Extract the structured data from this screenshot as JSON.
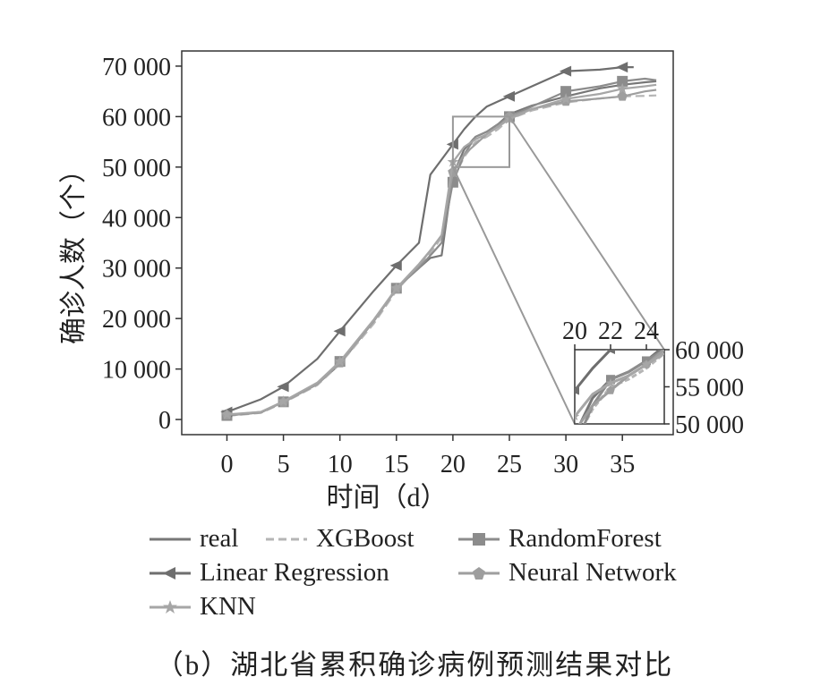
{
  "chart_data": {
    "type": "line",
    "xlabel": "时间（d）",
    "ylabel": "确诊人数（个）",
    "xlim": [
      -4,
      39.5
    ],
    "ylim": [
      -3000,
      73000
    ],
    "xticks": [
      "0",
      "5",
      "10",
      "15",
      "20",
      "25",
      "30",
      "35"
    ],
    "yticks": [
      "0",
      "10 000",
      "20 000",
      "30 000",
      "40 000",
      "50 000",
      "60 000",
      "70 000"
    ],
    "grid": false,
    "legend": "bottom",
    "caption": "（b）湖北省累积确诊病例预测结果对比",
    "series": [
      {
        "name": "real",
        "color": "#777777",
        "marker": "none",
        "x": [
          0,
          3,
          5,
          8,
          10,
          13,
          15,
          17,
          18,
          19,
          20,
          21,
          22,
          23,
          24,
          25,
          27,
          30,
          33,
          35,
          37,
          38
        ],
        "y": [
          800,
          1400,
          3500,
          7000,
          11000,
          19500,
          26000,
          30000,
          32000,
          32500,
          48500,
          53500,
          56000,
          57000,
          58500,
          60500,
          62200,
          64000,
          65600,
          66300,
          66800,
          67000
        ]
      },
      {
        "name": "XGBoost",
        "color": "#b5b5b5",
        "marker": "none",
        "dash": true,
        "x": [
          0,
          3,
          5,
          8,
          10,
          13,
          15,
          17,
          18,
          19,
          20,
          21,
          22,
          23,
          24,
          25,
          27,
          30,
          33,
          35,
          37,
          38
        ],
        "y": [
          700,
          1300,
          3300,
          6800,
          11000,
          19000,
          25500,
          30500,
          33000,
          36000,
          47500,
          52000,
          55000,
          56000,
          57500,
          59500,
          61200,
          62800,
          63600,
          64000,
          64100,
          64200
        ]
      },
      {
        "name": "RandomForest",
        "color": "#8c8c8c",
        "marker": "square",
        "x": [
          0,
          3,
          5,
          8,
          10,
          13,
          15,
          17,
          18,
          19,
          20,
          21,
          22,
          23,
          24,
          25,
          27,
          30,
          33,
          35,
          37,
          38
        ],
        "y": [
          800,
          1400,
          3500,
          7200,
          11500,
          19500,
          26000,
          30000,
          32500,
          35000,
          47000,
          52500,
          56000,
          57000,
          58500,
          60000,
          62000,
          65000,
          66000,
          67000,
          67500,
          67200
        ]
      },
      {
        "name": "Linear Regression",
        "color": "#6e6e6e",
        "marker": "triangle-left",
        "x": [
          0,
          3,
          5,
          8,
          10,
          13,
          15,
          17,
          18,
          19,
          20,
          21,
          22,
          23,
          24,
          25,
          27,
          30,
          33,
          35,
          36
        ],
        "y": [
          1500,
          4000,
          6500,
          12000,
          17500,
          25500,
          30500,
          35000,
          48500,
          51500,
          54500,
          57500,
          60000,
          62000,
          63000,
          64000,
          66000,
          69000,
          69300,
          69800,
          69800
        ]
      },
      {
        "name": "Neural Network",
        "color": "#9e9e9e",
        "marker": "pentagon",
        "x": [
          0,
          3,
          5,
          8,
          10,
          13,
          15,
          17,
          18,
          19,
          20,
          21,
          22,
          23,
          24,
          25,
          27,
          30,
          33,
          35,
          37,
          38
        ],
        "y": [
          900,
          1500,
          3400,
          7000,
          11200,
          19500,
          25800,
          30500,
          33500,
          36500,
          49000,
          52500,
          54500,
          56500,
          58000,
          60000,
          61500,
          63000,
          63600,
          64000,
          65000,
          65300
        ]
      },
      {
        "name": "KNN",
        "color": "#a6a6a6",
        "marker": "star",
        "x": [
          0,
          3,
          5,
          8,
          10,
          13,
          15,
          17,
          18,
          19,
          20,
          21,
          22,
          23,
          24,
          25,
          27,
          30,
          33,
          35,
          37,
          38
        ],
        "y": [
          1000,
          1500,
          3600,
          7300,
          11500,
          19800,
          26000,
          30800,
          33500,
          36500,
          51000,
          54000,
          55500,
          56500,
          58000,
          59500,
          61500,
          63500,
          64500,
          65500,
          66000,
          66300
        ]
      }
    ],
    "inset": {
      "xticks": [
        "20",
        "22",
        "24"
      ],
      "yticks": [
        "60 000",
        "55 000",
        "50 000"
      ],
      "xlim": [
        20,
        25
      ],
      "ylim": [
        50000,
        60000
      ]
    }
  }
}
